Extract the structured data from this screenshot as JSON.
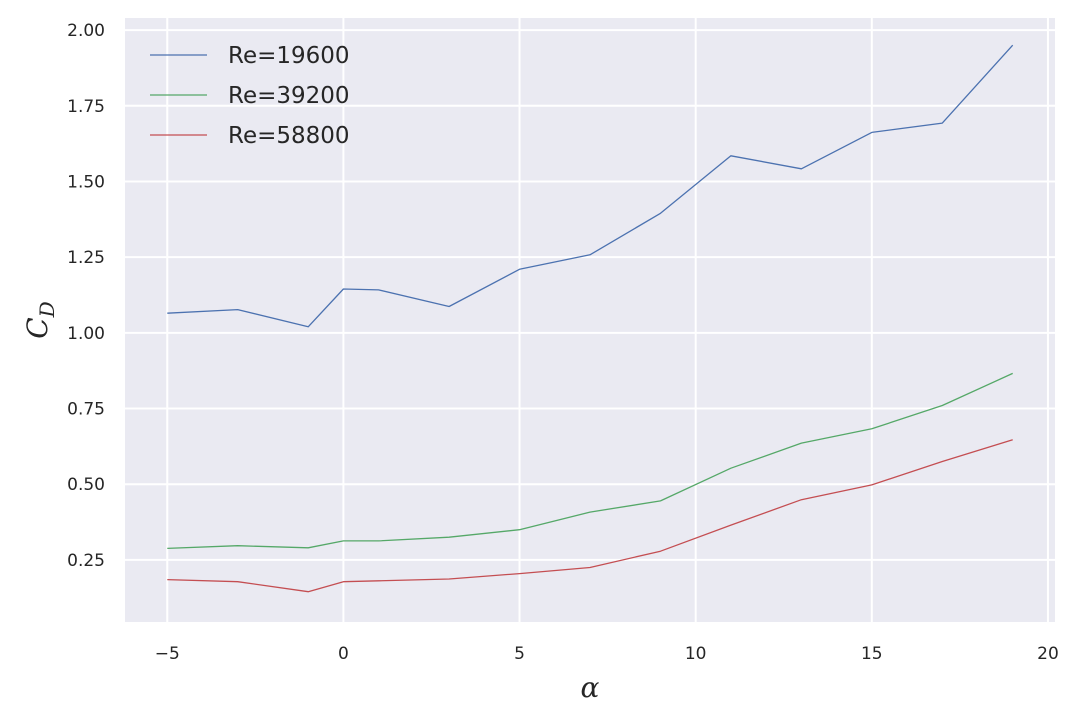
{
  "chart_data": {
    "type": "line",
    "xlabel": "α",
    "ylabel_main": "C",
    "ylabel_sub": "D",
    "xlim": [
      -6.2,
      20.2
    ],
    "ylim": [
      0.045,
      2.04
    ],
    "x_ticks": [
      -5,
      0,
      5,
      10,
      15,
      20
    ],
    "x_tick_labels": [
      "−5",
      "0",
      "5",
      "10",
      "15",
      "20"
    ],
    "y_ticks": [
      0.25,
      0.5,
      0.75,
      1.0,
      1.25,
      1.5,
      1.75,
      2.0
    ],
    "y_tick_labels": [
      "0.25",
      "0.50",
      "0.75",
      "1.00",
      "1.25",
      "1.50",
      "1.75",
      "2.00"
    ],
    "grid": true,
    "legend_position": "top-left",
    "background_color": "#eaeaf2",
    "grid_color": "#ffffff",
    "x": [
      -5,
      -3,
      -1,
      0,
      1,
      3,
      5,
      7,
      9,
      11,
      13,
      15,
      17,
      19
    ],
    "series": [
      {
        "name": "Re=19600",
        "color": "#4c72b0",
        "values": [
          1.065,
          1.077,
          1.02,
          1.145,
          1.142,
          1.087,
          1.21,
          1.258,
          1.395,
          1.585,
          1.542,
          1.662,
          1.693,
          1.95
        ]
      },
      {
        "name": "Re=39200",
        "color": "#55a868",
        "values": [
          0.288,
          0.297,
          0.29,
          0.313,
          0.313,
          0.325,
          0.35,
          0.408,
          0.445,
          0.553,
          0.636,
          0.683,
          0.76,
          0.866
        ]
      },
      {
        "name": "Re=58800",
        "color": "#c44e52",
        "values": [
          0.185,
          0.178,
          0.145,
          0.178,
          0.181,
          0.187,
          0.205,
          0.225,
          0.279,
          0.365,
          0.449,
          0.498,
          0.575,
          0.647
        ]
      }
    ]
  }
}
